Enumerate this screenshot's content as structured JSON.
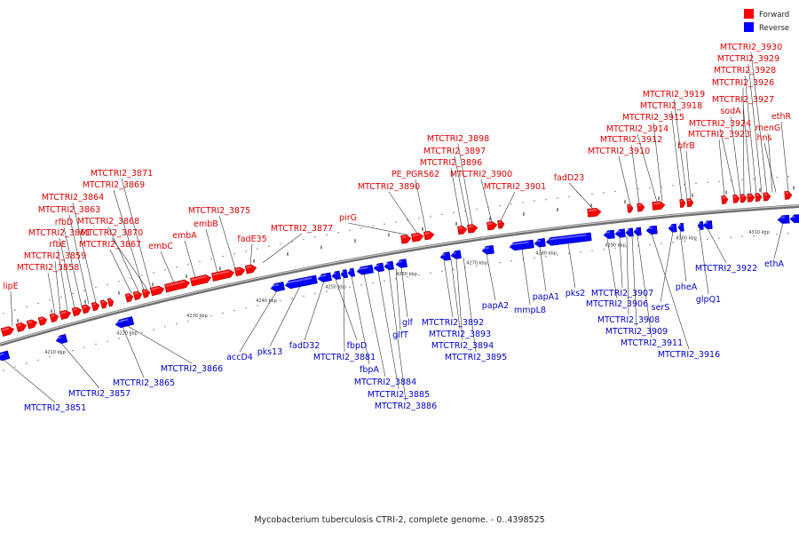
{
  "caption": "Mycobacterium tuberculosis CTRI-2, complete genome. - 0..4398525",
  "legend": [
    {
      "label": "Forward",
      "color": "#ff0000"
    },
    {
      "label": "Reverse",
      "color": "#0000ff"
    }
  ],
  "colors": {
    "forward": "#ff0000",
    "reverse": "#0000ff",
    "backbone": "#888888",
    "line": "#333333"
  },
  "ticks": [
    "4210 kbp",
    "4220 kbp",
    "4230 kbp",
    "4240 kbp",
    "4250 kbp",
    "4260 kbp",
    "4270 kbp",
    "4280 kbp",
    "4290 kbp",
    "4300 kbp",
    "4310 kbp"
  ],
  "forward_labels": [
    "lipE",
    "MTCTRI2_3858",
    "MTCTRI2_3859",
    "rfbE",
    "MTCTRI2_3861",
    "rfbD",
    "MTCTRI2_3863",
    "MTCTRI2_3864",
    "MTCTRI2_3867",
    "MTCTRI2_3868",
    "MTCTRI2_3869",
    "MTCTRI2_3870",
    "MTCTRI2_3871",
    "embC",
    "embA",
    "embB",
    "MTCTRI2_3875",
    "fadE35",
    "MTCTRI2_3877",
    "pirG",
    "MTCTRI2_3890",
    "PE_PGRS62",
    "MTCTRI2_3896",
    "MTCTRI2_3897",
    "MTCTRI2_3898",
    "MTCTRI2_3900",
    "MTCTRI2_3901",
    "fadD23",
    "MTCTRI2_3910",
    "MTCTRI2_3912",
    "MTCTRI2_3914",
    "MTCTRI2_3915",
    "MTCTRI2_3918",
    "MTCTRI2_3919",
    "bfrB",
    "MTCTRI2_3923",
    "MTCTRI2_3924",
    "MTCTRI2_3926",
    "MTCTRI2_3927",
    "MTCTRI2_3928",
    "MTCTRI2_3929",
    "MTCTRI2_3930",
    "sodA",
    "menG",
    "hns",
    "ethR"
  ],
  "reverse_labels": [
    "MTCTRI2_3851",
    "MTCTRI2_3857",
    "MTCTRI2_3865",
    "MTCTRI2_3866",
    "accD4",
    "pks13",
    "fadD32",
    "fbpD",
    "MTCTRI2_3881",
    "fbpA",
    "MTCTRI2_3884",
    "MTCTRI2_3885",
    "MTCTRI2_3886",
    "glf",
    "glfT",
    "MTCTRI2_3892",
    "MTCTRI2_3893",
    "MTCTRI2_3894",
    "MTCTRI2_3895",
    "papA2",
    "mmpL8",
    "papA1",
    "pks2",
    "MTCTRI2_3906",
    "MTCTRI2_3907",
    "MTCTRI2_3908",
    "MTCTRI2_3909",
    "MTCTRI2_3911",
    "MTCTRI2_3916",
    "serS",
    "pheA",
    "glpQ1",
    "MTCTRI2_3922",
    "ethA"
  ]
}
